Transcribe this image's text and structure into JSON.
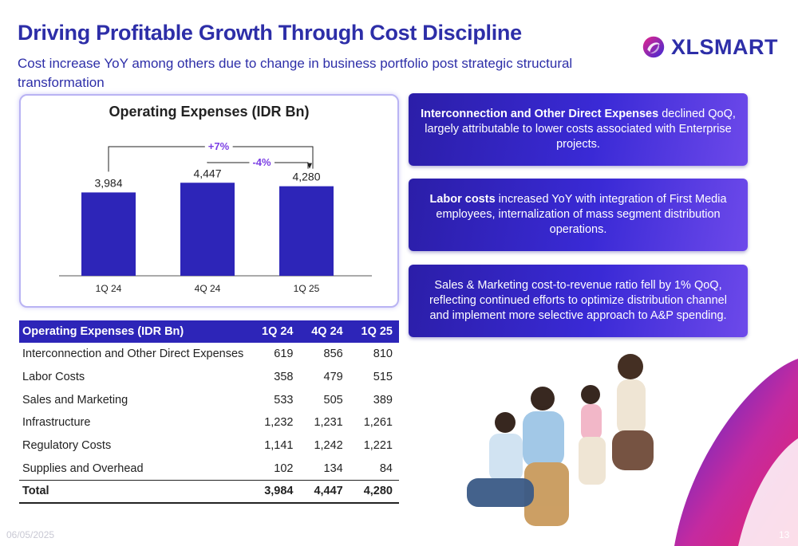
{
  "header": {
    "title": "Driving Profitable Growth Through Cost Discipline",
    "subtitle": "Cost increase YoY among others due to change in business portfolio post strategic structural transformation"
  },
  "logo": {
    "text": "XLSMART",
    "icon": "xlsmart-swirl-icon"
  },
  "chart_data": {
    "type": "bar",
    "title": "Operating Expenses (IDR Bn)",
    "categories": [
      "1Q 24",
      "4Q 24",
      "1Q 25"
    ],
    "values": [
      3984,
      4447,
      4280
    ],
    "value_labels": [
      "3,984",
      "4,447",
      "4,280"
    ],
    "annotations": [
      {
        "label": "+7%",
        "from": "1Q 24",
        "to": "1Q 25"
      },
      {
        "label": "-4%",
        "from": "4Q 24",
        "to": "1Q 25"
      }
    ],
    "ylim": [
      0,
      8000
    ],
    "grid": false,
    "bar_color": "#2d25b8",
    "annotation_color": "#7b3fe4"
  },
  "boxes": [
    {
      "bold": "Interconnection and Other Direct Expenses",
      "text": " declined QoQ, largely attributable to lower costs associated with Enterprise projects."
    },
    {
      "bold": "Labor costs",
      "text": " increased YoY with integration of First Media employees, internalization of mass segment distribution operations."
    },
    {
      "bold": "",
      "text": "Sales & Marketing cost-to-revenue ratio fell by 1% QoQ, reflecting continued efforts to optimize distribution channel and implement more selective approach to A&P spending."
    }
  ],
  "table": {
    "headers": [
      "Operating Expenses (IDR Bn)",
      "1Q 24",
      "4Q 24",
      "1Q 25"
    ],
    "rows": [
      [
        "Interconnection and Other Direct Expenses",
        "619",
        "856",
        "810"
      ],
      [
        "Labor Costs",
        "358",
        "479",
        "515"
      ],
      [
        "Sales and Marketing",
        "533",
        "505",
        "389"
      ],
      [
        "Infrastructure",
        "1,232",
        "1,231",
        "1,261"
      ],
      [
        "Regulatory Costs",
        "1,141",
        "1,242",
        "1,221"
      ],
      [
        "Supplies and Overhead",
        "102",
        "134",
        "84"
      ]
    ],
    "total": [
      "Total",
      "3,984",
      "4,447",
      "4,280"
    ]
  },
  "footer": {
    "date": "06/05/2025",
    "page": "13"
  },
  "colors": {
    "brand": "#2d2ea8",
    "accent": "#7b3fe4",
    "header_bg": "#2d25b8"
  }
}
